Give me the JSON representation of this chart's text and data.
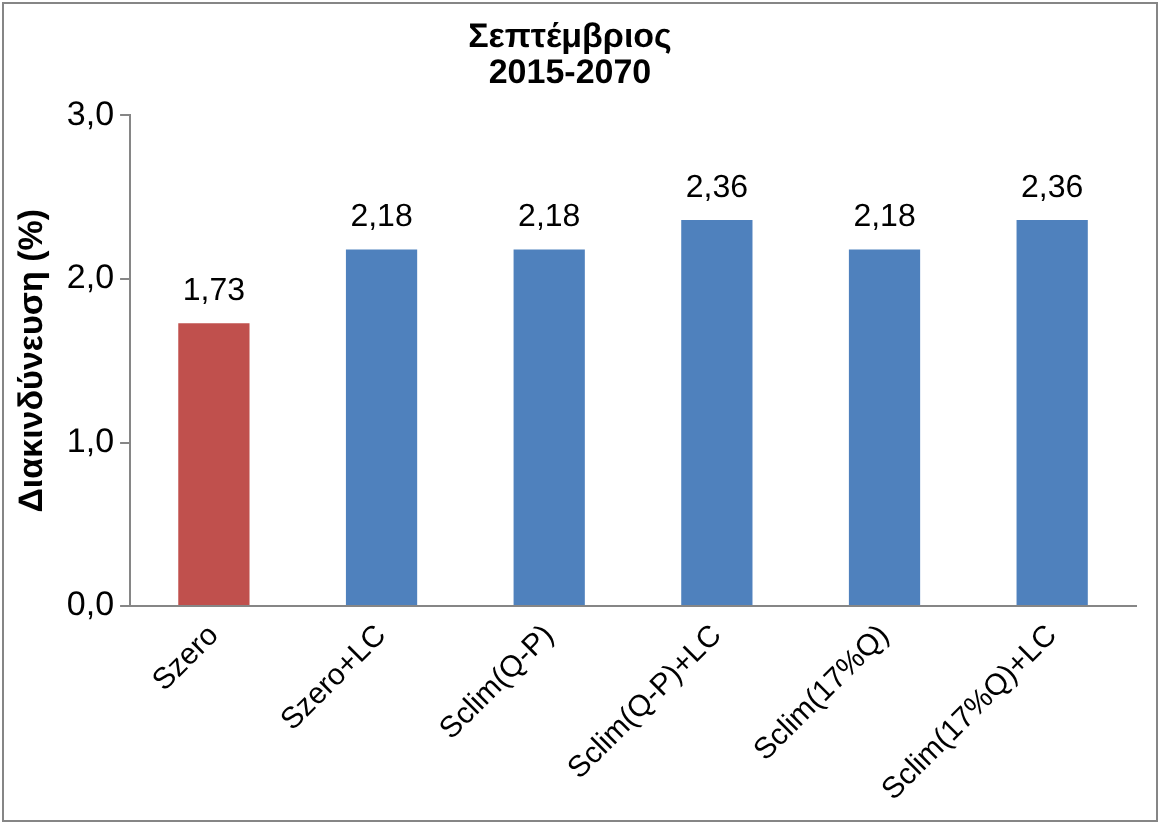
{
  "chart_data": {
    "type": "bar",
    "title": "Σεπτέμβριος\n2015-2070",
    "ylabel": "Διακινδύνευση (%)",
    "categories": [
      "Szero",
      "Szero+LC",
      "Sclim(Q-P)",
      "Sclim(Q-P)+LC",
      "Sclim(17%Q)",
      "Sclim(17%Q)+LC"
    ],
    "values": [
      1.73,
      2.18,
      2.18,
      2.36,
      2.18,
      2.36
    ],
    "colors": [
      "#c0504d",
      "#4f81bd",
      "#4f81bd",
      "#4f81bd",
      "#4f81bd",
      "#4f81bd"
    ],
    "value_labels": [
      "1,73",
      "2,18",
      "2,18",
      "2,36",
      "2,18",
      "2,36"
    ],
    "ylim": [
      0,
      3
    ],
    "yticks": [
      {
        "value": 0,
        "label": "0,0"
      },
      {
        "value": 1,
        "label": "1,0"
      },
      {
        "value": 2,
        "label": "2,0"
      },
      {
        "value": 3,
        "label": "3,0"
      }
    ],
    "grid": false,
    "legend": false
  }
}
